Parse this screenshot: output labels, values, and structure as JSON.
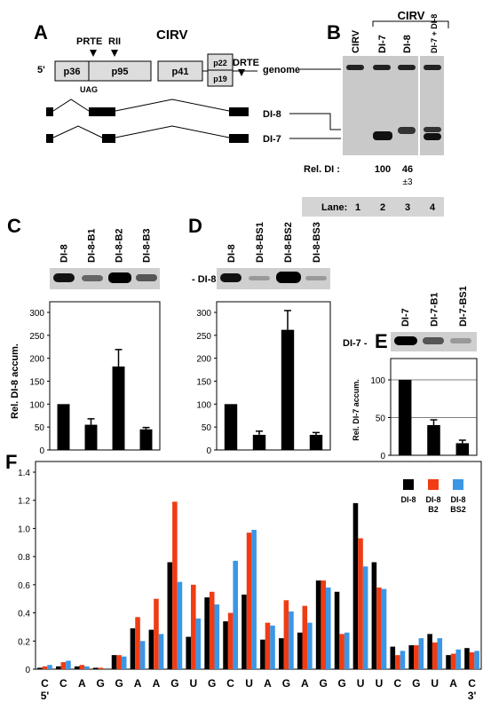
{
  "panel_labels": [
    "A",
    "B",
    "C",
    "D",
    "E",
    "F"
  ],
  "genome_map": {
    "title": "CIRV",
    "prte": "PRTE",
    "rii": "RII",
    "drte": "DRTE",
    "five_prime": "5'",
    "orfs": [
      "p36",
      "p95",
      "p41",
      "p22",
      "p19"
    ],
    "codon": "UAG",
    "di_labels": [
      "DI-8",
      "DI-7"
    ]
  },
  "northern_b": {
    "group_label": "CIRV",
    "lanes": [
      "CIRV",
      "DI-7",
      "DI-8",
      "DI-7 + DI-8"
    ],
    "genome_label": "genome",
    "rel_di_label": "Rel. DI :",
    "rel_di_values": [
      100,
      46
    ],
    "rel_di_error": "±3",
    "lane_label": "Lane:",
    "lane_numbers": [
      1,
      2,
      3,
      4
    ]
  },
  "band_label_cd": "- DI-8 -",
  "band_label_e": "DI-7 -",
  "chart_data": [
    {
      "type": "bar",
      "categories": [
        "DI-8",
        "DI-8-B1",
        "DI-8-B2",
        "DI-8-B3"
      ],
      "values": [
        100,
        55,
        182,
        45
      ],
      "errors": [
        null,
        13,
        37,
        4
      ],
      "color": "#000000",
      "ylabel": "Rel. DI-8  accum.",
      "ylim": [
        0,
        300
      ],
      "yticks": [
        0,
        50,
        100,
        150,
        200,
        250,
        300
      ],
      "grid": false
    },
    {
      "type": "bar",
      "categories": [
        "DI-8",
        "DI-8-BS1",
        "DI-8-BS2",
        "DI-8-BS3"
      ],
      "values": [
        100,
        33,
        262,
        33
      ],
      "errors": [
        null,
        8,
        42,
        5
      ],
      "color": "#000000",
      "ylim": [
        0,
        300
      ],
      "yticks": [
        0,
        50,
        100,
        150,
        200,
        250,
        300
      ],
      "grid": false
    },
    {
      "type": "bar",
      "categories": [
        "DI-7",
        "DI-7-B1",
        "DI-7-BS1"
      ],
      "values": [
        100,
        40,
        16
      ],
      "errors": [
        null,
        7,
        4
      ],
      "color": "#000000",
      "ylabel": "Rel. DI-7 accum.",
      "ylim": [
        0,
        120
      ],
      "yticks": [
        0,
        50,
        100
      ],
      "grid": true
    },
    {
      "type": "bar",
      "categories": [
        "C",
        "C",
        "A",
        "G",
        "G",
        "A",
        "A",
        "G",
        "U",
        "G",
        "C",
        "U",
        "A",
        "G",
        "A",
        "G",
        "G",
        "U",
        "U",
        "C",
        "G",
        "U",
        "A",
        "C"
      ],
      "label_colors": [
        "#000",
        "#000",
        "#000",
        "#000",
        "#000",
        "#000",
        "#1a8c1a",
        "#1a8c1a",
        "#1a8c1a",
        "#1a8c1a",
        "#1a8c1a",
        "#1a8c1a",
        "#000",
        "#000",
        "#000",
        "#000",
        "#000",
        "#000",
        "#000",
        "#000",
        "#000",
        "#000",
        "#000",
        "#000"
      ],
      "end_labels": [
        "5'",
        "3'"
      ],
      "series": [
        {
          "name": "DI-8",
          "color": "#000000",
          "values": [
            0.01,
            0.02,
            0.02,
            0.01,
            0.1,
            0.29,
            0.28,
            0.76,
            0.23,
            0.51,
            0.34,
            0.53,
            0.21,
            0.22,
            0.26,
            0.63,
            0.55,
            1.18,
            0.76,
            0.16,
            0.17,
            0.25,
            0.1,
            0.15
          ]
        },
        {
          "name": "DI-8 B2",
          "color": "#f03c14",
          "values": [
            0.02,
            0.05,
            0.03,
            0.01,
            0.1,
            0.37,
            0.5,
            1.19,
            0.6,
            0.55,
            0.4,
            0.97,
            0.33,
            0.49,
            0.45,
            0.63,
            0.25,
            0.93,
            0.58,
            0.1,
            0.17,
            0.19,
            0.11,
            0.12
          ]
        },
        {
          "name": "DI-8 BS2",
          "color": "#3c96e6",
          "values": [
            0.03,
            0.06,
            0.02,
            0.0,
            0.09,
            0.2,
            0.25,
            0.62,
            0.36,
            0.46,
            0.77,
            0.99,
            0.31,
            0.41,
            0.33,
            0.58,
            0.26,
            0.73,
            0.57,
            0.13,
            0.22,
            0.22,
            0.14,
            0.13
          ]
        }
      ],
      "ylim": [
        0,
        1.4
      ],
      "yticks": [
        0,
        0.2,
        0.4,
        0.6,
        0.8,
        {
          "value": 1,
          "label": "1.0"
        },
        1.2,
        1.4
      ],
      "grid": false,
      "legend": "top-right"
    }
  ]
}
